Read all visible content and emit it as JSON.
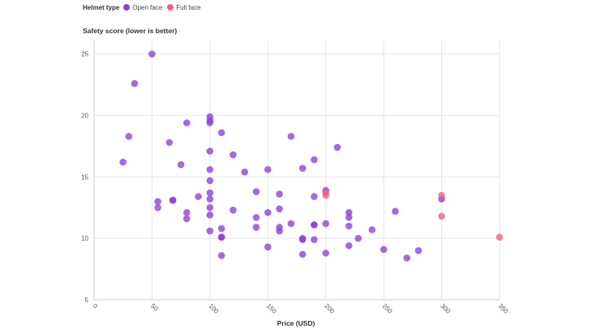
{
  "chart_data": {
    "type": "scatter",
    "title": "",
    "legend_title": "Helmet type",
    "ylabel": "Safety score (lower is better)",
    "xlabel": "Price (USD)",
    "xlim": [
      0,
      350
    ],
    "ylim": [
      5,
      26
    ],
    "xticks": [
      "0",
      "50",
      "100",
      "150",
      "200",
      "250",
      "300",
      "350"
    ],
    "yticks": [
      "5",
      "10",
      "15",
      "20",
      "25"
    ],
    "grid": true,
    "legend_placement": "top-left",
    "series": [
      {
        "name": "Open face",
        "color": "#8b3fd9",
        "points": [
          [
            25,
            16.2
          ],
          [
            30,
            18.3
          ],
          [
            35,
            22.6
          ],
          [
            50,
            25.0
          ],
          [
            55,
            13.0
          ],
          [
            55,
            12.5
          ],
          [
            65,
            17.8
          ],
          [
            68,
            13.1
          ],
          [
            68,
            13.1
          ],
          [
            75,
            16.0
          ],
          [
            80,
            19.4
          ],
          [
            80,
            12.1
          ],
          [
            80,
            11.6
          ],
          [
            90,
            13.4
          ],
          [
            100,
            19.9
          ],
          [
            100,
            19.6
          ],
          [
            100,
            19.4
          ],
          [
            100,
            17.1
          ],
          [
            100,
            15.6
          ],
          [
            100,
            14.7
          ],
          [
            100,
            13.7
          ],
          [
            100,
            13.2
          ],
          [
            100,
            12.5
          ],
          [
            100,
            11.9
          ],
          [
            100,
            10.6
          ],
          [
            110,
            18.6
          ],
          [
            110,
            10.8
          ],
          [
            110,
            10.1
          ],
          [
            110,
            10.1
          ],
          [
            110,
            8.6
          ],
          [
            120,
            16.8
          ],
          [
            120,
            12.3
          ],
          [
            130,
            15.4
          ],
          [
            140,
            13.8
          ],
          [
            140,
            11.7
          ],
          [
            140,
            10.9
          ],
          [
            150,
            15.6
          ],
          [
            150,
            12.1
          ],
          [
            150,
            9.3
          ],
          [
            160,
            13.6
          ],
          [
            160,
            12.4
          ],
          [
            160,
            10.9
          ],
          [
            160,
            10.6
          ],
          [
            170,
            18.3
          ],
          [
            170,
            11.2
          ],
          [
            180,
            15.7
          ],
          [
            180,
            10.0
          ],
          [
            180,
            9.9
          ],
          [
            180,
            8.7
          ],
          [
            190,
            16.4
          ],
          [
            190,
            13.4
          ],
          [
            190,
            11.1
          ],
          [
            190,
            11.1
          ],
          [
            190,
            9.9
          ],
          [
            200,
            13.9
          ],
          [
            200,
            11.2
          ],
          [
            200,
            8.8
          ],
          [
            210,
            17.4
          ],
          [
            220,
            12.1
          ],
          [
            220,
            11.7
          ],
          [
            220,
            11.0
          ],
          [
            220,
            9.4
          ],
          [
            228,
            10.0
          ],
          [
            240,
            10.7
          ],
          [
            250,
            9.1
          ],
          [
            260,
            12.2
          ],
          [
            270,
            8.4
          ],
          [
            280,
            9.0
          ],
          [
            300,
            13.2
          ]
        ]
      },
      {
        "name": "Full face",
        "color": "#e8647c",
        "points": [
          [
            200,
            13.7
          ],
          [
            200,
            13.5
          ],
          [
            300,
            13.5
          ],
          [
            300,
            11.8
          ],
          [
            350,
            10.1
          ]
        ]
      }
    ]
  }
}
